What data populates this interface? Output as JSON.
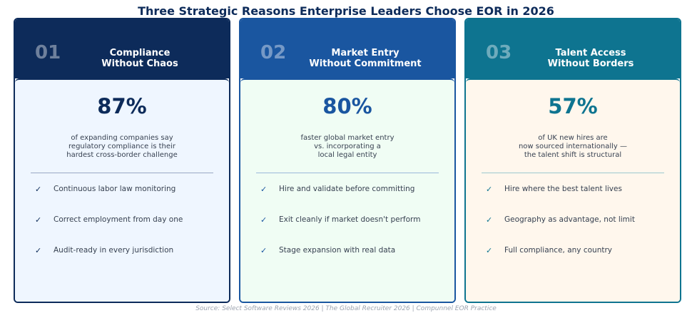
{
  "title": "Three Strategic Reasons Enterprise Leaders Choose EOR in 2026",
  "cards": [
    {
      "num": "01",
      "title": "Compliance\nWithout Chaos",
      "stat": "87%",
      "desc": "of expanding companies say\nregulatory compliance is their\nhardest cross-border challenge",
      "items": [
        "Continuous labor law monitoring",
        "Correct employment from day one",
        "Audit-ready in every jurisdiction"
      ],
      "color": "#0d2b5a",
      "bg": "#eff6ff",
      "rule": "#9aa9c4",
      "check": "#0d2b5a"
    },
    {
      "num": "02",
      "title": "Market Entry\nWithout Commitment",
      "stat": "80%",
      "desc": "faster global market entry\nvs. incorporating a\nlocal legal entity",
      "items": [
        "Hire and validate before committing",
        "Exit cleanly if market doesn't perform",
        "Stage expansion with real data"
      ],
      "color": "#1a56a0",
      "bg": "#f0fdf4",
      "rule": "#9bb8d9",
      "check": "#1a56a0"
    },
    {
      "num": "03",
      "title": "Talent Access\nWithout Borders",
      "stat": "57%",
      "desc": "of UK new hires are\nnow sourced internationally —\nthe talent shift is structural",
      "items": [
        "Hire where the best talent lives",
        "Geography as advantage, not limit",
        "Full compliance, any country"
      ],
      "color": "#0e7490",
      "bg": "#fff7ed",
      "rule": "#9cc9cf",
      "check": "#0e7490"
    }
  ],
  "check_icon": "✓",
  "source": "Source: Select Software Reviews 2026  |  The Global Recruiter 2026  |  Compunnel EOR Practice"
}
